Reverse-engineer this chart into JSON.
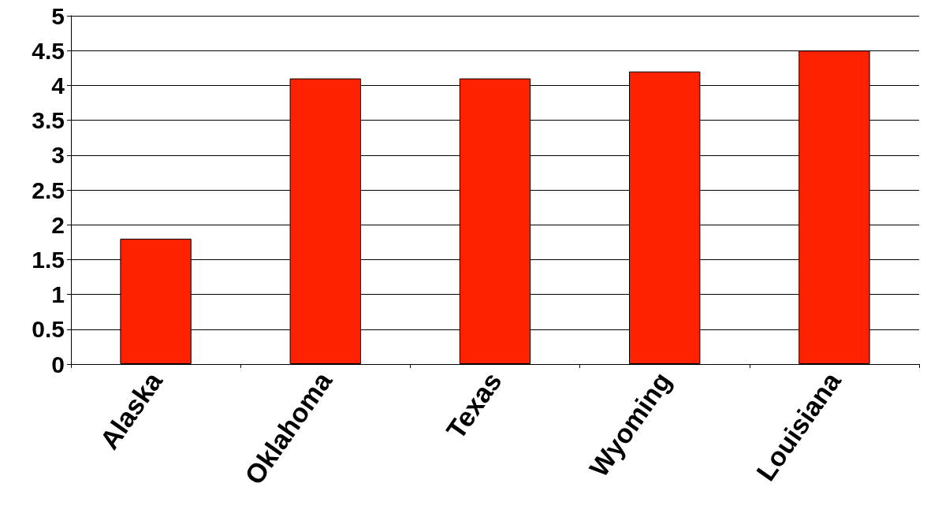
{
  "chart_data": {
    "type": "bar",
    "categories": [
      "Alaska",
      "Oklahoma",
      "Texas",
      "Wyoming",
      "Louisiana"
    ],
    "values": [
      1.8,
      4.1,
      4.1,
      4.2,
      4.5
    ],
    "color": "#ff2200",
    "ylim": [
      0,
      5
    ],
    "yticks": [
      0,
      0.5,
      1,
      1.5,
      2,
      2.5,
      3,
      3.5,
      4,
      4.5,
      5
    ],
    "grid": "y"
  }
}
